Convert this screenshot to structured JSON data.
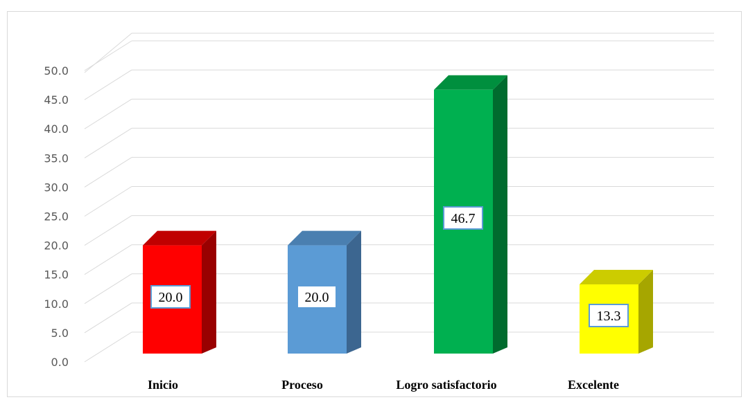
{
  "chart_data": {
    "type": "bar",
    "style": "3d-column",
    "categories": [
      "Inicio",
      "Proceso",
      "Logro satisfactorio",
      "Excelente"
    ],
    "values": [
      20.0,
      20.0,
      46.7,
      13.3
    ],
    "data_labels": [
      "20.0",
      "20.0",
      "46.7",
      "13.3"
    ],
    "ylim": [
      0,
      50
    ],
    "y_ticks": [
      "0.0",
      "5.0",
      "10.0",
      "15.0",
      "20.0",
      "25.0",
      "30.0",
      "35.0",
      "40.0",
      "45.0",
      "50.0"
    ],
    "grid": true,
    "legend": "none",
    "title": "",
    "xlabel": "",
    "ylabel": "",
    "colors": {
      "front": [
        "#ff0000",
        "#5b9bd5",
        "#00b050",
        "#ffff00"
      ],
      "side": [
        "#990000",
        "#3c6690",
        "#006b2e",
        "#a6a600"
      ],
      "top": [
        "#c00000",
        "#4a7fb0",
        "#008f3e",
        "#cccc00"
      ],
      "label_border": "#5b9bd5",
      "grid": "#d9d9d9",
      "tick_text": "#595959"
    }
  }
}
